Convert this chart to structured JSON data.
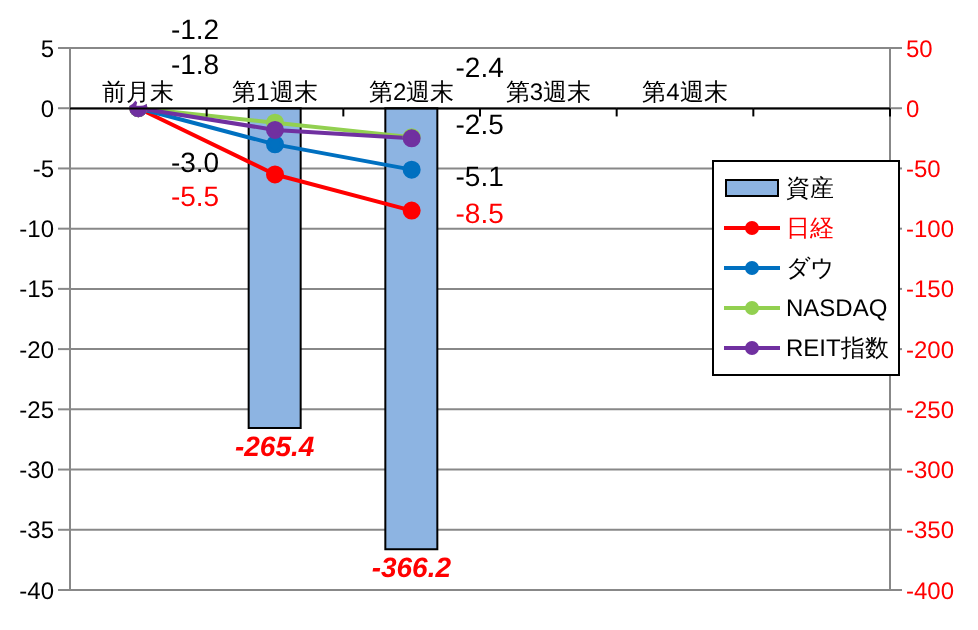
{
  "chart_data": {
    "type": "line",
    "categories": [
      "前月末",
      "第1週末",
      "第2週末",
      "第3週末",
      "第4週末",
      null
    ],
    "series": [
      {
        "name": "資産",
        "type": "bar",
        "axis": "y2",
        "color": "#8db4e2",
        "values": [
          null,
          -265.4,
          -366.2,
          null,
          null,
          null
        ],
        "value_labels": [
          null,
          "-265.4",
          "-366.2",
          null,
          null,
          null
        ]
      },
      {
        "name": "日経",
        "color": "#ff0000",
        "values": [
          0,
          -5.5,
          -8.5,
          null,
          null,
          null
        ],
        "value_labels": [
          null,
          "-5.5",
          "-8.5",
          null,
          null,
          null
        ]
      },
      {
        "name": "ダウ",
        "color": "#0070c0",
        "values": [
          0,
          -3.0,
          -5.1,
          null,
          null,
          null
        ],
        "value_labels": [
          null,
          "-3.0",
          "-5.1",
          null,
          null,
          null
        ]
      },
      {
        "name": "NASDAQ",
        "color": "#92d050",
        "values": [
          0,
          -1.2,
          -2.4,
          null,
          null,
          null
        ],
        "value_labels": [
          null,
          "-1.2",
          "-2.4",
          null,
          null,
          null
        ]
      },
      {
        "name": "REIT指数",
        "color": "#7030a0",
        "values": [
          0,
          -1.8,
          -2.5,
          null,
          null,
          null
        ],
        "value_labels": [
          null,
          "-1.8",
          "-2.5",
          null,
          null,
          null
        ]
      }
    ],
    "ylim": [
      -40,
      5
    ],
    "yticks": [
      5,
      0,
      -5,
      -10,
      -15,
      -20,
      -25,
      -30,
      -35,
      -40
    ],
    "y2lim": [
      -400,
      50
    ],
    "y2ticks": [
      50,
      0,
      -50,
      -100,
      -150,
      -200,
      -250,
      -300,
      -350,
      -400
    ],
    "grid": "y",
    "legend": "top right",
    "marker": "circle",
    "line_style": "solid"
  }
}
